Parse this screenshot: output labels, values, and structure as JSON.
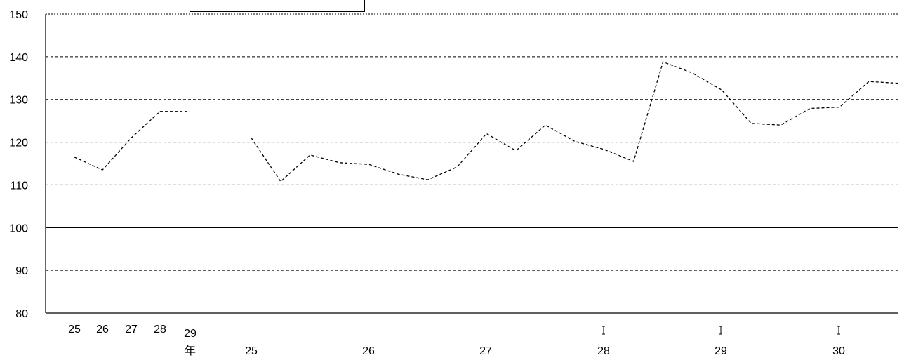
{
  "chart_data": {
    "type": "line",
    "title": "",
    "xlabel": "",
    "ylabel": "",
    "ylim": [
      80,
      150
    ],
    "yticks": [
      80,
      90,
      100,
      110,
      120,
      130,
      140,
      150
    ],
    "grid": true,
    "gridline_style": "dashed",
    "reference_line": 100,
    "line_color": "#000000",
    "line_style": "dashed",
    "annual_labels": [
      "25",
      "26",
      "27",
      "28",
      "29"
    ],
    "annual_unit": "年",
    "period_labels": [
      "25",
      "26",
      "27",
      "28",
      "29",
      "30"
    ],
    "period_marks": [
      "28",
      "29",
      "30"
    ],
    "series": [
      {
        "segment": "annual",
        "x": [
          "25",
          "26",
          "27",
          "28",
          "29"
        ],
        "values": [
          116.5,
          113.5,
          121,
          127.2,
          127.2
        ]
      },
      {
        "segment": "quarterly",
        "values": [
          121,
          110.8,
          117,
          115.2,
          114.8,
          112.5,
          111.2,
          114.2,
          122,
          118,
          124,
          120.2,
          118.3,
          115.5,
          138.8,
          136.2,
          132.2,
          124.4,
          124,
          127.9,
          128.2,
          134.2,
          133.8
        ]
      }
    ]
  }
}
